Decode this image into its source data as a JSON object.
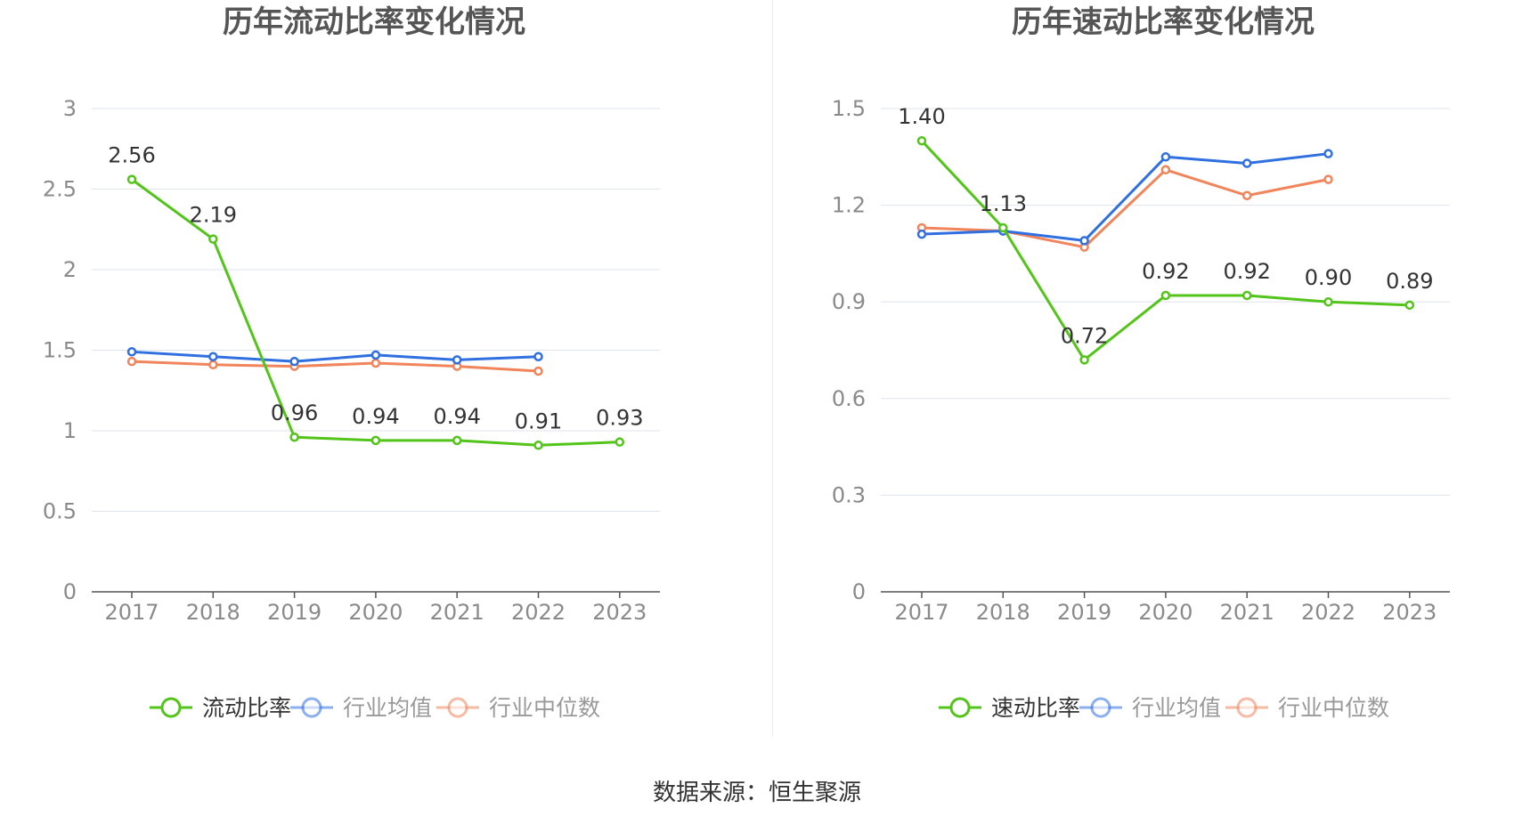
{
  "chart_data": [
    {
      "type": "line",
      "title": "历年流动比率变化情况",
      "categories": [
        "2017",
        "2018",
        "2019",
        "2020",
        "2021",
        "2022",
        "2023"
      ],
      "ylim": [
        0,
        3
      ],
      "yticks": [
        "0",
        "0.5",
        "1",
        "1.5",
        "2",
        "2.5",
        "3"
      ],
      "yticks_values": [
        0,
        0.5,
        1,
        1.5,
        2,
        2.5,
        3
      ],
      "grid": true,
      "legend_position": "bottom",
      "series": [
        {
          "name": "流动比率",
          "color": "#52c41a",
          "values": [
            2.56,
            2.19,
            0.96,
            0.94,
            0.94,
            0.91,
            0.93
          ],
          "labels": [
            "2.56",
            "2.19",
            "0.96",
            "0.94",
            "0.94",
            "0.91",
            "0.93"
          ]
        },
        {
          "name": "行业均值",
          "color": "#2f6fe0",
          "values": [
            1.49,
            1.46,
            1.43,
            1.47,
            1.44,
            1.46,
            null
          ]
        },
        {
          "name": "行业中位数",
          "color": "#f0845a",
          "values": [
            1.43,
            1.41,
            1.4,
            1.42,
            1.4,
            1.37,
            null
          ]
        }
      ]
    },
    {
      "type": "line",
      "title": "历年速动比率变化情况",
      "categories": [
        "2017",
        "2018",
        "2019",
        "2020",
        "2021",
        "2022",
        "2023"
      ],
      "ylim": [
        0,
        1.5
      ],
      "yticks": [
        "0",
        "0.3",
        "0.6",
        "0.9",
        "1.2",
        "1.5"
      ],
      "yticks_values": [
        0,
        0.3,
        0.6,
        0.9,
        1.2,
        1.5
      ],
      "grid": true,
      "legend_position": "bottom",
      "series": [
        {
          "name": "速动比率",
          "color": "#52c41a",
          "values": [
            1.4,
            1.13,
            0.72,
            0.92,
            0.92,
            0.9,
            0.89
          ],
          "labels": [
            "1.40",
            "1.13",
            "0.72",
            "0.92",
            "0.92",
            "0.90",
            "0.89"
          ]
        },
        {
          "name": "行业均值",
          "color": "#2f6fe0",
          "values": [
            1.11,
            1.12,
            1.09,
            1.35,
            1.33,
            1.36,
            null
          ]
        },
        {
          "name": "行业中位数",
          "color": "#f0845a",
          "values": [
            1.13,
            1.12,
            1.07,
            1.31,
            1.23,
            1.28,
            null
          ]
        }
      ]
    }
  ],
  "source": "数据来源：恒生聚源"
}
